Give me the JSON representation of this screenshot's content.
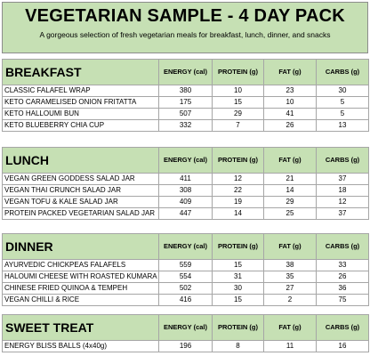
{
  "header": {
    "title": "VEGETARIAN SAMPLE - 4 DAY PACK",
    "subtitle": "A gorgeous selection of fresh vegetarian meals for breakfast, lunch, dinner, and snacks"
  },
  "columns": [
    "ENERGY (cal)",
    "PROTEIN  (g)",
    "FAT (g)",
    "CARBS (g)"
  ],
  "sections": [
    {
      "name": "BREAKFAST",
      "rows": [
        {
          "item": "CLASSIC FALAFEL WRAP",
          "energy": "380",
          "protein": "10",
          "fat": "23",
          "carbs": "30"
        },
        {
          "item": "KETO CARAMELISED ONION FRITATTA",
          "energy": "175",
          "protein": "15",
          "fat": "10",
          "carbs": "5"
        },
        {
          "item": "KETO HALLOUMI BUN",
          "energy": "507",
          "protein": "29",
          "fat": "41",
          "carbs": "5"
        },
        {
          "item": "KETO BLUEBERRY CHIA CUP",
          "energy": "332",
          "protein": "7",
          "fat": "26",
          "carbs": "13"
        }
      ]
    },
    {
      "name": "LUNCH",
      "rows": [
        {
          "item": "VEGAN GREEN GODDESS SALAD JAR",
          "energy": "411",
          "protein": "12",
          "fat": "21",
          "carbs": "37"
        },
        {
          "item": "VEGAN THAI CRUNCH SALAD JAR",
          "energy": "308",
          "protein": "22",
          "fat": "14",
          "carbs": "18"
        },
        {
          "item": "VEGAN TOFU & KALE SALAD JAR",
          "energy": "409",
          "protein": "19",
          "fat": "29",
          "carbs": "12"
        },
        {
          "item": "PROTEIN PACKED VEGETARIAN SALAD JAR",
          "energy": "447",
          "protein": "14",
          "fat": "25",
          "carbs": "37"
        }
      ]
    },
    {
      "name": "DINNER",
      "rows": [
        {
          "item": "AYURVEDIC CHICKPEAS FALAFELS",
          "energy": "559",
          "protein": "15",
          "fat": "38",
          "carbs": "33"
        },
        {
          "item": "HALOUMI CHEESE WITH ROASTED KUMARA",
          "energy": "554",
          "protein": "31",
          "fat": "35",
          "carbs": "26"
        },
        {
          "item": "CHINESE FRIED QUINOA & TEMPEH",
          "energy": "502",
          "protein": "30",
          "fat": "27",
          "carbs": "36"
        },
        {
          "item": "VEGAN CHILLI & RICE",
          "energy": "416",
          "protein": "15",
          "fat": "2",
          "carbs": "75"
        }
      ]
    },
    {
      "name": "SWEET TREAT",
      "rows": [
        {
          "item": "ENERGY BLISS BALLS (4x40g)",
          "energy": "196",
          "protein": "8",
          "fat": "11",
          "carbs": "16"
        }
      ]
    }
  ]
}
